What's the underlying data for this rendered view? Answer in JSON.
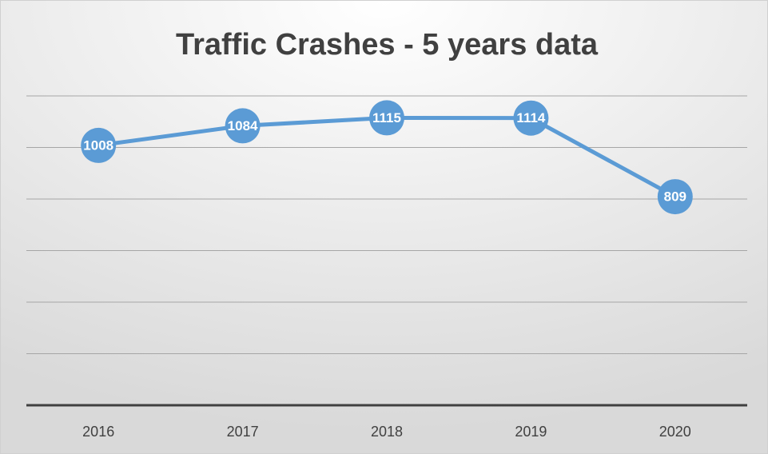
{
  "chart_data": {
    "type": "line",
    "title": "Traffic Crashes - 5 years data",
    "categories": [
      "2016",
      "2017",
      "2018",
      "2019",
      "2020"
    ],
    "series": [
      {
        "name": "Traffic Crashes",
        "color": "#5b9bd5",
        "values": [
          1008,
          1084,
          1115,
          1114,
          809
        ]
      }
    ],
    "ylim": [
      0,
      1200
    ],
    "yticks": [
      0,
      200,
      400,
      600,
      800,
      1000,
      1200
    ],
    "grid": true
  }
}
